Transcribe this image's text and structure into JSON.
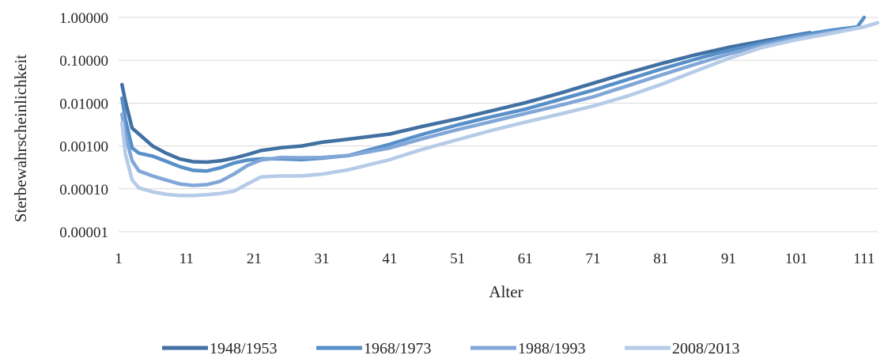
{
  "chart_data": {
    "type": "line",
    "title": "",
    "xlabel": "Alter",
    "ylabel": "Sterbewahrscheinlichkeit",
    "y_scale": "log",
    "xlim": [
      1,
      113
    ],
    "ylim": [
      1e-05,
      1.0
    ],
    "x_ticks": [
      1,
      11,
      21,
      31,
      41,
      51,
      61,
      71,
      81,
      91,
      101,
      111
    ],
    "y_ticks": [
      1.0,
      0.1,
      0.01,
      0.001,
      0.0001,
      1e-05
    ],
    "y_tick_labels": [
      "1.00000",
      "0.10000",
      "0.01000",
      "0.00100",
      "0.00010",
      "0.00001"
    ],
    "grid": true,
    "legend_position": "bottom",
    "series": [
      {
        "name": "1948/1953",
        "color": "#4170a3",
        "x": [
          1.5,
          2,
          3,
          4,
          6,
          8,
          10,
          12,
          14,
          16,
          18,
          20,
          22,
          25,
          28,
          31,
          35,
          41,
          46,
          51,
          56,
          61,
          66,
          71,
          76,
          81,
          86,
          91,
          96,
          101,
          103
        ],
        "y": [
          0.027,
          0.011,
          0.0026,
          0.0019,
          0.001,
          0.00068,
          0.0005,
          0.00043,
          0.00042,
          0.00045,
          0.00052,
          0.00063,
          0.00078,
          0.00091,
          0.001,
          0.00122,
          0.00145,
          0.0019,
          0.0029,
          0.0043,
          0.0066,
          0.0102,
          0.0168,
          0.029,
          0.05,
          0.083,
          0.133,
          0.2,
          0.28,
          0.39,
          0.44
        ]
      },
      {
        "name": "1968/1973",
        "color": "#578fc8",
        "x": [
          1.5,
          2,
          3,
          4,
          6,
          8,
          10,
          12,
          14,
          16,
          18,
          20,
          22,
          25,
          28,
          31,
          35,
          41,
          46,
          51,
          56,
          61,
          66,
          71,
          76,
          81,
          86,
          91,
          96,
          101,
          106,
          110,
          111
        ],
        "y": [
          0.013,
          0.0042,
          0.0009,
          0.00068,
          0.00058,
          0.00044,
          0.00033,
          0.00027,
          0.00026,
          0.00031,
          0.0004,
          0.00047,
          0.0005,
          0.0005,
          0.00048,
          0.00052,
          0.0006,
          0.0011,
          0.0019,
          0.0031,
          0.0048,
          0.0072,
          0.012,
          0.02,
          0.035,
          0.062,
          0.105,
          0.17,
          0.25,
          0.37,
          0.5,
          0.6,
          1.0
        ]
      },
      {
        "name": "1988/1993",
        "color": "#81a7d8",
        "x": [
          1.5,
          2,
          3,
          4,
          6,
          8,
          10,
          12,
          14,
          16,
          18,
          20,
          22,
          25,
          28,
          31,
          35,
          41,
          46,
          51,
          56,
          61,
          66,
          71,
          76,
          81,
          86,
          91,
          96,
          101,
          106,
          111
        ],
        "y": [
          0.0055,
          0.0018,
          0.00045,
          0.00026,
          0.0002,
          0.00016,
          0.00013,
          0.00012,
          0.000125,
          0.00015,
          0.00022,
          0.00035,
          0.00047,
          0.00054,
          0.00053,
          0.00054,
          0.0006,
          0.0009,
          0.0015,
          0.0024,
          0.0037,
          0.0057,
          0.0088,
          0.014,
          0.025,
          0.045,
          0.08,
          0.14,
          0.22,
          0.33,
          0.45,
          0.6
        ]
      },
      {
        "name": "2008/2013",
        "color": "#b5cbe8",
        "x": [
          1.5,
          2,
          3,
          4,
          6,
          8,
          10,
          12,
          14,
          16,
          18,
          20,
          22,
          25,
          28,
          31,
          35,
          41,
          46,
          51,
          56,
          61,
          66,
          71,
          76,
          81,
          86,
          91,
          96,
          101,
          106,
          111,
          113
        ],
        "y": [
          0.0035,
          0.00065,
          0.00016,
          0.000105,
          8.5e-05,
          7.5e-05,
          7e-05,
          7e-05,
          7.3e-05,
          7.8e-05,
          8.8e-05,
          0.00013,
          0.00019,
          0.0002,
          0.0002,
          0.00022,
          0.00028,
          0.00048,
          0.00085,
          0.0014,
          0.0023,
          0.0036,
          0.0055,
          0.0085,
          0.0145,
          0.027,
          0.055,
          0.11,
          0.2,
          0.3,
          0.42,
          0.6,
          0.75
        ]
      }
    ]
  }
}
